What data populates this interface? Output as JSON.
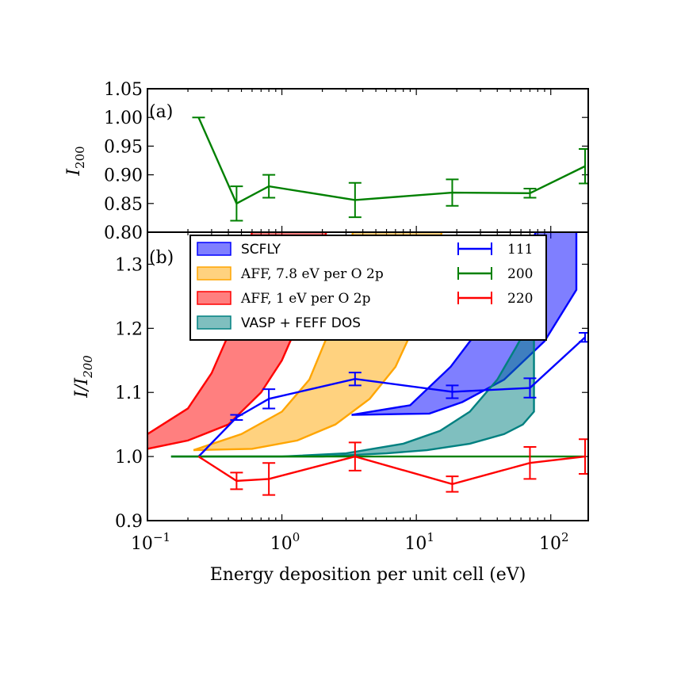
{
  "chart_data": [
    {
      "panel": "(a)",
      "type": "line",
      "ylabel_base": "I",
      "ylabel_sub": "200",
      "xscale": "log",
      "xlim": [
        0.1,
        190
      ],
      "ylim": [
        0.8,
        1.05
      ],
      "yticks": [
        "0.80",
        "0.85",
        "0.90",
        "0.95",
        "1.00",
        "1.05"
      ],
      "ytick_values": [
        0.8,
        0.85,
        0.9,
        0.95,
        1.0,
        1.05
      ],
      "series": [
        {
          "color": "#008000",
          "x": [
            0.24,
            0.46,
            0.8,
            3.5,
            18.5,
            70,
            180
          ],
          "y": [
            1.0,
            0.85,
            0.88,
            0.856,
            0.869,
            0.868,
            0.915
          ],
          "err": [
            0.0,
            0.03,
            0.02,
            0.03,
            0.023,
            0.008,
            0.03
          ]
        }
      ]
    },
    {
      "panel": "(b)",
      "type": "line",
      "xlabel": "Energy deposition per unit cell (eV)",
      "ylabel_base": "I/I",
      "ylabel_sub": "200",
      "xscale": "log",
      "xlim": [
        0.1,
        190
      ],
      "ylim": [
        0.9,
        1.35
      ],
      "yticks": [
        "0.9",
        "1.0",
        "1.1",
        "1.2",
        "1.3"
      ],
      "ytick_values": [
        0.9,
        1.0,
        1.1,
        1.2,
        1.3
      ],
      "xticks": [
        {
          "base": "10",
          "exp": "−1",
          "value": 0.1
        },
        {
          "base": "10",
          "exp": "0",
          "value": 1
        },
        {
          "base": "10",
          "exp": "1",
          "value": 10
        },
        {
          "base": "10",
          "exp": "2",
          "value": 100
        }
      ],
      "bands": [
        {
          "name": "SCFLY",
          "fill": "#0000ff",
          "stroke": "#0000ff",
          "upper": [
            [
              3.3,
              1.065
            ],
            [
              9,
              1.08
            ],
            [
              18,
              1.14
            ],
            [
              35,
              1.22
            ],
            [
              60,
              1.3
            ],
            [
              100,
              1.4
            ]
          ],
          "lower": [
            [
              3.3,
              1.065
            ],
            [
              12.5,
              1.067
            ],
            [
              22,
              1.085
            ],
            [
              45,
              1.12
            ],
            [
              90,
              1.18
            ],
            [
              155,
              1.26
            ],
            [
              155,
              1.5
            ]
          ]
        },
        {
          "name": "AFF, 7.8 eV per O 2p",
          "fill": "#ffa500",
          "stroke": "#ffa500",
          "upper": [
            [
              0.22,
              1.01
            ],
            [
              0.5,
              1.035
            ],
            [
              1.0,
              1.07
            ],
            [
              1.6,
              1.12
            ],
            [
              2.3,
              1.2
            ],
            [
              3.0,
              1.3
            ],
            [
              3.8,
              1.4
            ]
          ],
          "lower": [
            [
              0.22,
              1.01
            ],
            [
              0.6,
              1.012
            ],
            [
              1.3,
              1.025
            ],
            [
              2.5,
              1.05
            ],
            [
              4.5,
              1.09
            ],
            [
              7.0,
              1.14
            ],
            [
              10.5,
              1.22
            ],
            [
              14,
              1.3
            ],
            [
              17,
              1.4
            ]
          ]
        },
        {
          "name": "AFF, 1 eV per O 2p",
          "fill": "#ff0000",
          "stroke": "#ff0000",
          "upper": [
            [
              0.1,
              1.035
            ],
            [
              0.2,
              1.075
            ],
            [
              0.3,
              1.13
            ],
            [
              0.42,
              1.2
            ],
            [
              0.55,
              1.3
            ],
            [
              0.65,
              1.4
            ]
          ],
          "lower": [
            [
              0.1,
              1.012
            ],
            [
              0.2,
              1.025
            ],
            [
              0.4,
              1.05
            ],
            [
              0.7,
              1.1
            ],
            [
              1.0,
              1.15
            ],
            [
              1.4,
              1.22
            ],
            [
              1.9,
              1.3
            ],
            [
              2.4,
              1.4
            ]
          ]
        },
        {
          "name": "VASP + FEFF DOS",
          "fill": "#008080",
          "stroke": "#008080",
          "upper": [
            [
              0.15,
              1.0
            ],
            [
              1,
              1.0
            ],
            [
              3,
              1.005
            ],
            [
              8,
              1.02
            ],
            [
              15,
              1.04
            ],
            [
              25,
              1.07
            ],
            [
              40,
              1.12
            ],
            [
              55,
              1.17
            ],
            [
              70,
              1.21
            ],
            [
              75,
              1.22
            ]
          ],
          "lower": [
            [
              0.15,
              1.0
            ],
            [
              2,
              1.0
            ],
            [
              6,
              1.005
            ],
            [
              12,
              1.01
            ],
            [
              25,
              1.02
            ],
            [
              45,
              1.035
            ],
            [
              62,
              1.05
            ],
            [
              75,
              1.07
            ],
            [
              75,
              1.22
            ]
          ]
        }
      ],
      "series": [
        {
          "name": "111",
          "color": "#0000ff",
          "x": [
            0.24,
            0.46,
            0.8,
            3.5,
            18.5,
            70,
            180
          ],
          "y": [
            1.0,
            1.061,
            1.09,
            1.121,
            1.101,
            1.107,
            1.186
          ],
          "err": [
            0.0,
            0.004,
            0.015,
            0.01,
            0.01,
            0.015,
            0.007
          ]
        },
        {
          "name": "200",
          "color": "#008000",
          "x": [
            0.15,
            180
          ],
          "y": [
            1.0,
            1.0
          ],
          "err": [
            0.0,
            0.0
          ]
        },
        {
          "name": "220",
          "color": "#ff0000",
          "x": [
            0.24,
            0.46,
            0.8,
            3.5,
            18.5,
            70,
            180
          ],
          "y": [
            1.0,
            0.962,
            0.965,
            1.0,
            0.957,
            0.99,
            1.0
          ],
          "err": [
            0.0,
            0.013,
            0.025,
            0.022,
            0.012,
            0.025,
            0.027
          ]
        }
      ],
      "legend": {
        "placement": "top",
        "band_entries": [
          "SCFLY",
          "AFF, 7.8 eV per O 2p",
          "AFF, 1 eV per O 2p",
          "VASP + FEFF DOS"
        ],
        "line_entries": [
          "111",
          "200",
          "220"
        ]
      }
    }
  ]
}
